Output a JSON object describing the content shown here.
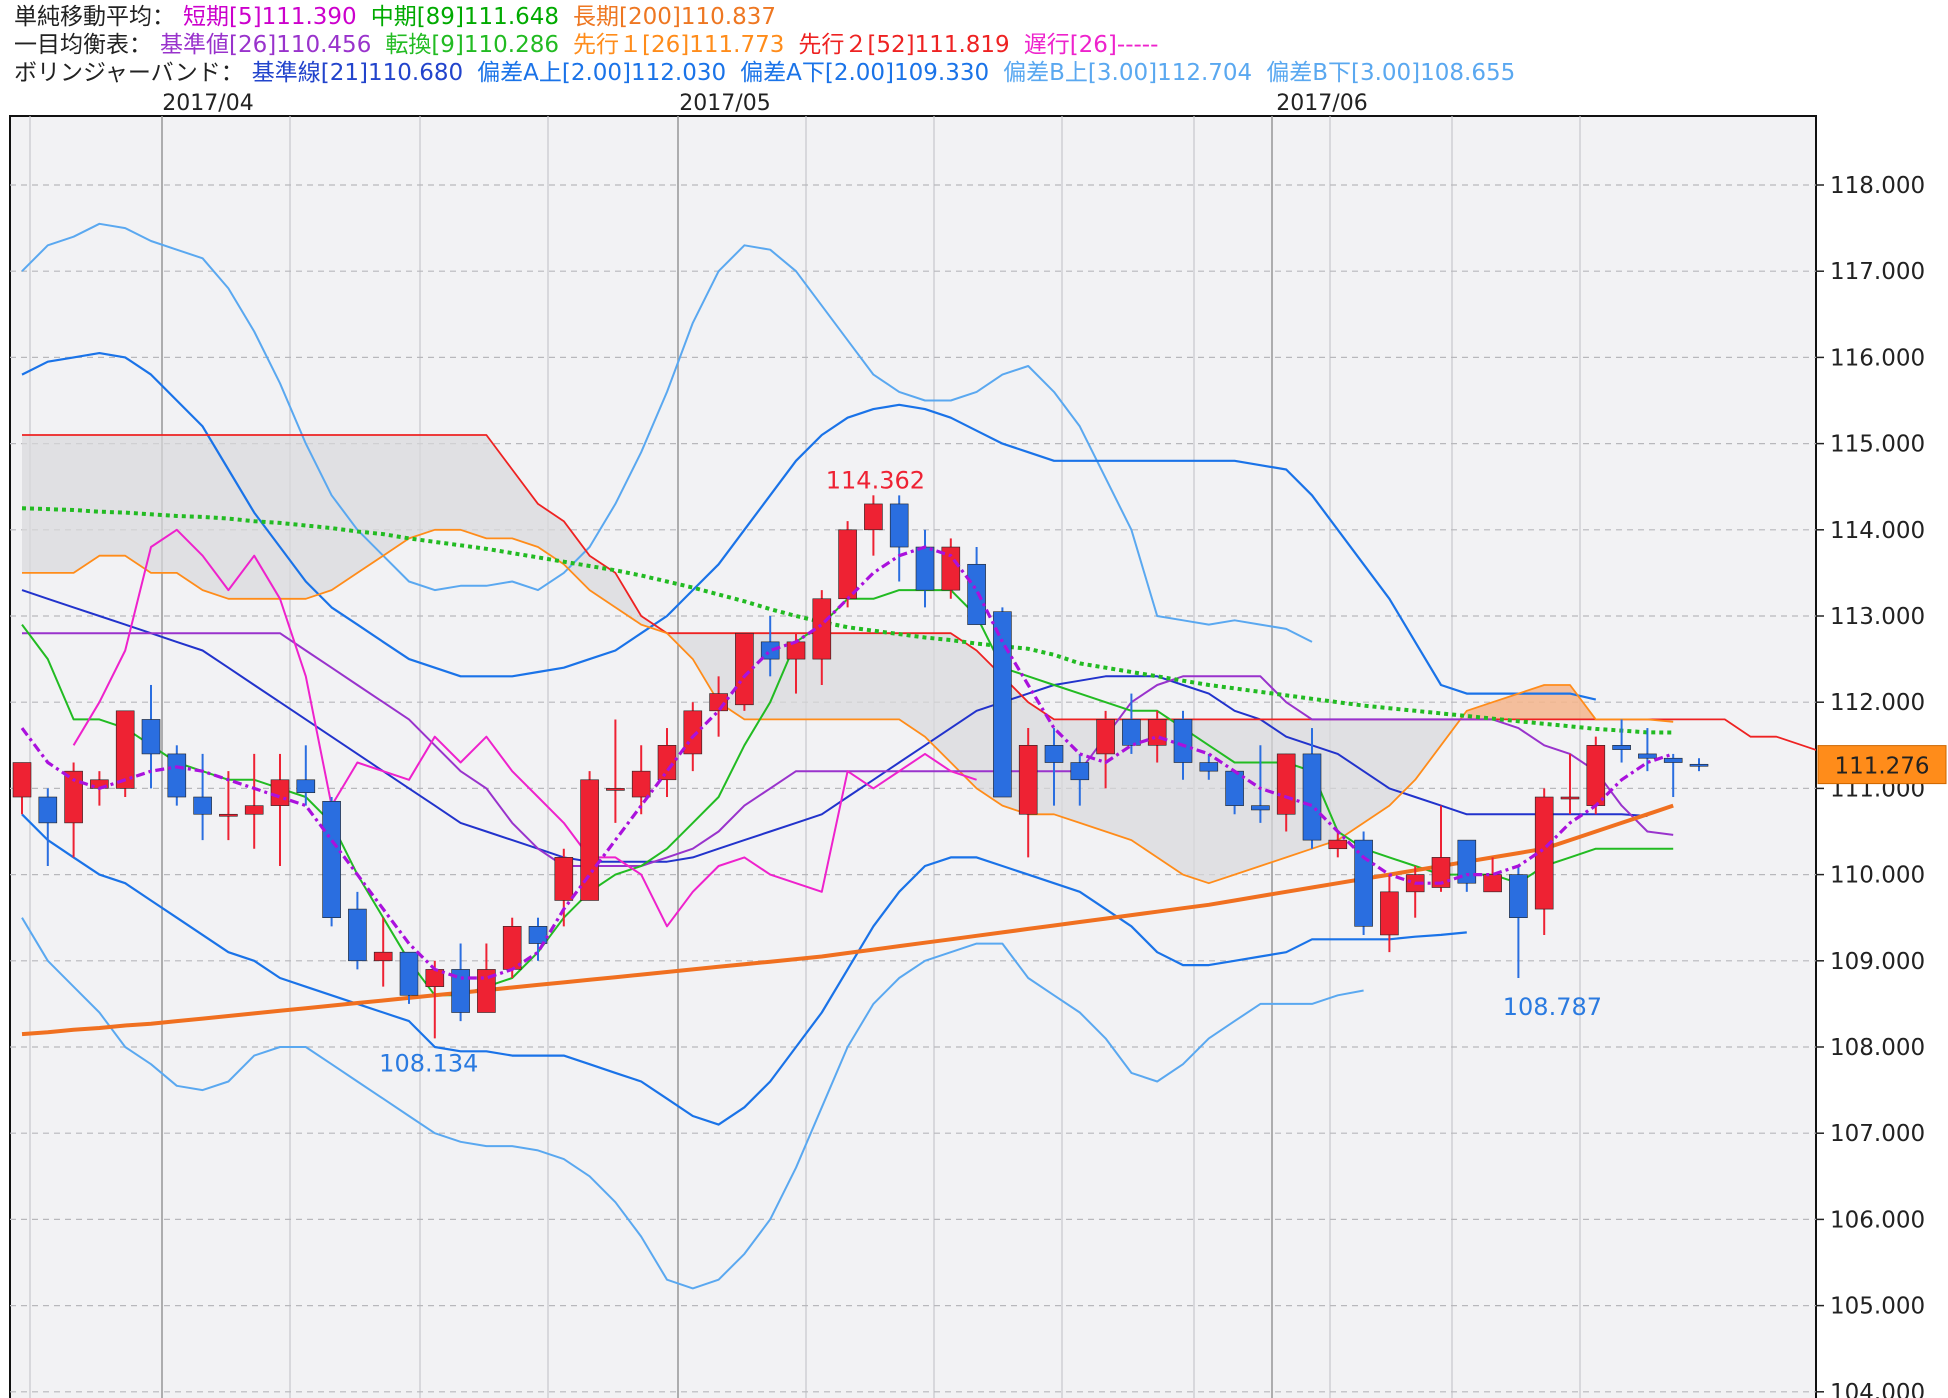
{
  "legend": {
    "sma": {
      "label": "単純移動平均：",
      "short": "短期[5]111.390",
      "mid": "中期[89]111.648",
      "long": "長期[200]110.837",
      "short_color": "#cc00cc",
      "mid_color": "#00aa00",
      "long_color": "#ee7722"
    },
    "ichimoku": {
      "label": "一目均衡表：",
      "base": "基準値[26]110.456",
      "conversion": "転換[9]110.286",
      "span1": "先行１[26]111.773",
      "span2": "先行２[52]111.819",
      "lagging": "遅行[26]-----",
      "base_color": "#9933cc",
      "conversion_color": "#22bb22",
      "span1_color": "#ff8c1a",
      "span2_color": "#ee2222",
      "lagging_color": "#ee22cc"
    },
    "bollinger": {
      "label": "ボリンジャーバンド：",
      "mid": "基準線[21]110.680",
      "a_up": "偏差A上[2.00]112.030",
      "a_down": "偏差A下[2.00]109.330",
      "b_up": "偏差B上[3.00]112.704",
      "b_down": "偏差B下[3.00]108.655",
      "mid_color": "#2244cc",
      "a_color": "#1a73e8",
      "b_color": "#5aa8f0"
    }
  },
  "chart_data": {
    "type": "candlestick",
    "x_labels": [
      "2017/04",
      "2017/05",
      "2017/06"
    ],
    "y_ticks": [
      "118.000",
      "117.000",
      "116.000",
      "115.000",
      "114.000",
      "113.000",
      "112.000",
      "111.000",
      "110.000",
      "109.000",
      "108.000",
      "107.000",
      "106.000",
      "105.000",
      "104.000"
    ],
    "ylim": [
      103.9,
      119.0
    ],
    "current_price": "111.276",
    "high_annotation": "114.362",
    "low_annotation_1": "108.134",
    "low_annotation_2": "108.787",
    "colors": {
      "up": "#ee2233",
      "down": "#2a6ee0",
      "plot_bg": "#f2f2f4",
      "cloud_gray": "#d8d8db",
      "cloud_orange": "#f5b58c",
      "price_tag": "#ff8c1a"
    },
    "candles": [
      {
        "o": 110.9,
        "h": 111.3,
        "l": 110.7,
        "c": 111.3
      },
      {
        "o": 110.9,
        "h": 111.0,
        "l": 110.1,
        "c": 110.6
      },
      {
        "o": 110.6,
        "h": 111.3,
        "l": 110.2,
        "c": 111.2
      },
      {
        "o": 111.0,
        "h": 111.2,
        "l": 110.8,
        "c": 111.1
      },
      {
        "o": 111.0,
        "h": 111.9,
        "l": 110.9,
        "c": 111.9
      },
      {
        "o": 111.8,
        "h": 112.2,
        "l": 111.0,
        "c": 111.4
      },
      {
        "o": 111.4,
        "h": 111.5,
        "l": 110.8,
        "c": 110.9
      },
      {
        "o": 110.9,
        "h": 111.4,
        "l": 110.4,
        "c": 110.7
      },
      {
        "o": 110.7,
        "h": 111.2,
        "l": 110.4,
        "c": 110.7
      },
      {
        "o": 110.7,
        "h": 111.4,
        "l": 110.3,
        "c": 110.8
      },
      {
        "o": 110.8,
        "h": 111.4,
        "l": 110.1,
        "c": 111.1
      },
      {
        "o": 111.1,
        "h": 111.5,
        "l": 110.8,
        "c": 110.95
      },
      {
        "o": 110.85,
        "h": 110.9,
        "l": 109.4,
        "c": 109.5
      },
      {
        "o": 109.6,
        "h": 109.8,
        "l": 108.9,
        "c": 109.0
      },
      {
        "o": 109.0,
        "h": 109.5,
        "l": 108.7,
        "c": 109.1
      },
      {
        "o": 109.1,
        "h": 109.1,
        "l": 108.5,
        "c": 108.6
      },
      {
        "o": 108.7,
        "h": 109.0,
        "l": 108.1,
        "c": 108.9
      },
      {
        "o": 108.9,
        "h": 109.2,
        "l": 108.3,
        "c": 108.4
      },
      {
        "o": 108.4,
        "h": 109.2,
        "l": 108.4,
        "c": 108.9
      },
      {
        "o": 108.9,
        "h": 109.5,
        "l": 108.8,
        "c": 109.4
      },
      {
        "o": 109.4,
        "h": 109.5,
        "l": 109.0,
        "c": 109.2
      },
      {
        "o": 109.7,
        "h": 110.3,
        "l": 109.4,
        "c": 110.2
      },
      {
        "o": 109.7,
        "h": 111.2,
        "l": 109.7,
        "c": 111.1
      },
      {
        "o": 111.0,
        "h": 111.8,
        "l": 110.6,
        "c": 111.0
      },
      {
        "o": 110.9,
        "h": 111.5,
        "l": 110.7,
        "c": 111.2
      },
      {
        "o": 111.1,
        "h": 111.7,
        "l": 110.9,
        "c": 111.5
      },
      {
        "o": 111.4,
        "h": 112.0,
        "l": 111.2,
        "c": 111.9
      },
      {
        "o": 111.9,
        "h": 112.3,
        "l": 111.6,
        "c": 112.1
      },
      {
        "o": 111.97,
        "h": 112.8,
        "l": 111.9,
        "c": 112.8
      },
      {
        "o": 112.7,
        "h": 113.0,
        "l": 112.3,
        "c": 112.5
      },
      {
        "o": 112.5,
        "h": 112.8,
        "l": 112.1,
        "c": 112.7
      },
      {
        "o": 112.5,
        "h": 113.3,
        "l": 112.2,
        "c": 113.2
      },
      {
        "o": 113.2,
        "h": 114.1,
        "l": 113.1,
        "c": 114.0
      },
      {
        "o": 114.0,
        "h": 114.4,
        "l": 113.7,
        "c": 114.3
      },
      {
        "o": 114.3,
        "h": 114.4,
        "l": 113.4,
        "c": 113.8
      },
      {
        "o": 113.8,
        "h": 114.0,
        "l": 113.1,
        "c": 113.3
      },
      {
        "o": 113.3,
        "h": 113.9,
        "l": 113.2,
        "c": 113.8
      },
      {
        "o": 113.6,
        "h": 113.8,
        "l": 112.9,
        "c": 112.9
      },
      {
        "o": 113.05,
        "h": 113.1,
        "l": 110.9,
        "c": 110.9
      },
      {
        "o": 110.7,
        "h": 111.7,
        "l": 110.2,
        "c": 111.5
      },
      {
        "o": 111.5,
        "h": 111.7,
        "l": 110.8,
        "c": 111.3
      },
      {
        "o": 111.3,
        "h": 111.4,
        "l": 110.8,
        "c": 111.1
      },
      {
        "o": 111.4,
        "h": 111.9,
        "l": 111.0,
        "c": 111.8
      },
      {
        "o": 111.8,
        "h": 112.1,
        "l": 111.4,
        "c": 111.5
      },
      {
        "o": 111.5,
        "h": 111.9,
        "l": 111.3,
        "c": 111.8
      },
      {
        "o": 111.8,
        "h": 111.9,
        "l": 111.1,
        "c": 111.3
      },
      {
        "o": 111.3,
        "h": 111.4,
        "l": 111.1,
        "c": 111.2
      },
      {
        "o": 111.2,
        "h": 111.2,
        "l": 110.7,
        "c": 110.8
      },
      {
        "o": 110.8,
        "h": 111.5,
        "l": 110.6,
        "c": 110.75
      },
      {
        "o": 110.7,
        "h": 111.4,
        "l": 110.5,
        "c": 111.4
      },
      {
        "o": 111.4,
        "h": 111.7,
        "l": 110.3,
        "c": 110.4
      },
      {
        "o": 110.3,
        "h": 110.5,
        "l": 110.2,
        "c": 110.4
      },
      {
        "o": 110.4,
        "h": 110.5,
        "l": 109.3,
        "c": 109.4
      },
      {
        "o": 109.3,
        "h": 110.0,
        "l": 109.1,
        "c": 109.8
      },
      {
        "o": 109.8,
        "h": 110.1,
        "l": 109.5,
        "c": 110.0
      },
      {
        "o": 109.85,
        "h": 110.8,
        "l": 109.8,
        "c": 110.2
      },
      {
        "o": 110.4,
        "h": 110.4,
        "l": 109.8,
        "c": 109.9
      },
      {
        "o": 109.8,
        "h": 110.2,
        "l": 109.8,
        "c": 110.0
      },
      {
        "o": 110.0,
        "h": 110.1,
        "l": 108.8,
        "c": 109.5
      },
      {
        "o": 109.6,
        "h": 111.0,
        "l": 109.3,
        "c": 110.9
      },
      {
        "o": 110.9,
        "h": 111.4,
        "l": 110.7,
        "c": 110.9
      },
      {
        "o": 110.8,
        "h": 111.6,
        "l": 110.7,
        "c": 111.5
      },
      {
        "o": 111.5,
        "h": 111.8,
        "l": 111.3,
        "c": 111.45
      },
      {
        "o": 111.4,
        "h": 111.7,
        "l": 111.2,
        "c": 111.35
      },
      {
        "o": 111.35,
        "h": 111.4,
        "l": 110.9,
        "c": 111.3
      },
      {
        "o": 111.28,
        "h": 111.35,
        "l": 111.2,
        "c": 111.276
      }
    ],
    "sma5": [
      111.7,
      111.3,
      111.1,
      111.0,
      111.1,
      111.2,
      111.25,
      111.2,
      111.1,
      111.0,
      110.9,
      110.8,
      110.4,
      110.0,
      109.6,
      109.2,
      108.9,
      108.8,
      108.8,
      108.9,
      109.1,
      109.6,
      110.0,
      110.4,
      110.8,
      111.2,
      111.6,
      111.9,
      112.3,
      112.6,
      112.7,
      112.9,
      113.2,
      113.5,
      113.7,
      113.8,
      113.7,
      113.3,
      112.7,
      112.2,
      111.7,
      111.4,
      111.3,
      111.5,
      111.6,
      111.5,
      111.4,
      111.2,
      111.0,
      110.9,
      110.8,
      110.5,
      110.2,
      110.0,
      109.9,
      109.9,
      110.0,
      110.0,
      110.1,
      110.3,
      110.6,
      110.8,
      111.1,
      111.3,
      111.4
    ],
    "sma89": [
      114.25,
      114.24,
      114.23,
      114.21,
      114.2,
      114.18,
      114.16,
      114.15,
      114.13,
      114.1,
      114.08,
      114.05,
      114.02,
      113.98,
      113.95,
      113.9,
      113.86,
      113.82,
      113.78,
      113.73,
      113.68,
      113.63,
      113.58,
      113.53,
      113.47,
      113.4,
      113.33,
      113.25,
      113.17,
      113.08,
      113.0,
      112.93,
      112.87,
      112.83,
      112.79,
      112.75,
      112.72,
      112.68,
      112.65,
      112.62,
      112.55,
      112.45,
      112.4,
      112.35,
      112.3,
      112.25,
      112.2,
      112.16,
      112.12,
      112.08,
      112.04,
      112.0,
      111.96,
      111.93,
      111.9,
      111.87,
      111.84,
      111.81,
      111.78,
      111.75,
      111.72,
      111.69,
      111.67,
      111.65,
      111.648
    ],
    "sma200": [
      108.15,
      108.17,
      108.2,
      108.22,
      108.25,
      108.27,
      108.3,
      108.33,
      108.36,
      108.39,
      108.42,
      108.45,
      108.48,
      108.51,
      108.54,
      108.57,
      108.6,
      108.63,
      108.66,
      108.69,
      108.72,
      108.75,
      108.78,
      108.81,
      108.84,
      108.87,
      108.9,
      108.93,
      108.96,
      108.99,
      109.02,
      109.05,
      109.09,
      109.13,
      109.17,
      109.21,
      109.25,
      109.29,
      109.33,
      109.37,
      109.41,
      109.45,
      109.49,
      109.53,
      109.57,
      109.61,
      109.65,
      109.7,
      109.75,
      109.8,
      109.85,
      109.9,
      109.95,
      110.0,
      110.05,
      110.1,
      110.15,
      110.2,
      110.25,
      110.3,
      110.4,
      110.5,
      110.6,
      110.7,
      110.8
    ],
    "tenkan": [
      112.9,
      112.5,
      111.8,
      111.8,
      111.7,
      111.5,
      111.3,
      111.2,
      111.1,
      111.1,
      111.0,
      110.9,
      110.6,
      110.0,
      109.5,
      109.0,
      108.6,
      108.6,
      108.7,
      108.8,
      109.1,
      109.5,
      109.8,
      110.0,
      110.1,
      110.3,
      110.6,
      110.9,
      111.5,
      112.0,
      112.7,
      112.9,
      113.2,
      113.2,
      113.3,
      113.3,
      113.3,
      113.0,
      112.4,
      112.3,
      112.2,
      112.1,
      112.0,
      111.9,
      111.9,
      111.7,
      111.5,
      111.3,
      111.3,
      111.3,
      111.2,
      110.5,
      110.3,
      110.2,
      110.1,
      110.0,
      110.0,
      110.0,
      109.9,
      110.1,
      110.2,
      110.3,
      110.3,
      110.3,
      110.3
    ],
    "kijun": [
      112.8,
      112.8,
      112.8,
      112.8,
      112.8,
      112.8,
      112.8,
      112.8,
      112.8,
      112.8,
      112.8,
      112.6,
      112.4,
      112.2,
      112.0,
      111.8,
      111.5,
      111.2,
      111.0,
      110.6,
      110.3,
      110.1,
      110.1,
      110.1,
      110.1,
      110.2,
      110.3,
      110.5,
      110.8,
      111.0,
      111.2,
      111.2,
      111.2,
      111.2,
      111.2,
      111.2,
      111.2,
      111.2,
      111.2,
      111.2,
      111.2,
      111.2,
      111.6,
      112.0,
      112.2,
      112.3,
      112.3,
      112.3,
      112.3,
      112.0,
      111.8,
      111.8,
      111.8,
      111.8,
      111.8,
      111.8,
      111.8,
      111.8,
      111.7,
      111.5,
      111.4,
      111.2,
      110.8,
      110.5,
      110.46
    ],
    "lagging": [
      null,
      null,
      111.5,
      112.0,
      112.6,
      113.8,
      114.0,
      113.7,
      113.3,
      113.7,
      113.2,
      112.3,
      110.8,
      111.3,
      111.2,
      111.1,
      111.6,
      111.3,
      111.6,
      111.2,
      110.9,
      110.6,
      110.2,
      110.2,
      110.0,
      109.4,
      109.8,
      110.1,
      110.2,
      110.0,
      109.9,
      109.8,
      111.2,
      111.0,
      111.2,
      111.4,
      111.2,
      111.1,
      null,
      null,
      null,
      null,
      null,
      null,
      null,
      null,
      null,
      null,
      null,
      null,
      null,
      null,
      null,
      null,
      null,
      null,
      null,
      null,
      null,
      null,
      null,
      null,
      null,
      null,
      null
    ],
    "span1": [
      113.5,
      113.5,
      113.5,
      113.7,
      113.7,
      113.5,
      113.5,
      113.3,
      113.2,
      113.2,
      113.2,
      113.2,
      113.3,
      113.5,
      113.7,
      113.9,
      114.0,
      114.0,
      113.9,
      113.9,
      113.8,
      113.6,
      113.3,
      113.1,
      112.9,
      112.8,
      112.5,
      112.0,
      111.8,
      111.8,
      111.8,
      111.8,
      111.8,
      111.8,
      111.8,
      111.6,
      111.3,
      111.0,
      110.8,
      110.7,
      110.7,
      110.6,
      110.5,
      110.4,
      110.2,
      110.0,
      109.9,
      110.0,
      110.1,
      110.2,
      110.3,
      110.4,
      110.6,
      110.8,
      111.1,
      111.5,
      111.9,
      112.0,
      112.1,
      112.2,
      112.2,
      111.8,
      111.8,
      111.8,
      111.773
    ],
    "span2": [
      115.1,
      115.1,
      115.1,
      115.1,
      115.1,
      115.1,
      115.1,
      115.1,
      115.1,
      115.1,
      115.1,
      115.1,
      115.1,
      115.1,
      115.1,
      115.1,
      115.1,
      115.1,
      115.1,
      114.7,
      114.3,
      114.1,
      113.7,
      113.5,
      113.0,
      112.8,
      112.8,
      112.8,
      112.8,
      112.8,
      112.8,
      112.8,
      112.8,
      112.8,
      112.8,
      112.8,
      112.8,
      112.6,
      112.3,
      112.0,
      111.8,
      111.8,
      111.8,
      111.8,
      111.8,
      111.8,
      111.8,
      111.8,
      111.8,
      111.8,
      111.8,
      111.8,
      111.8,
      111.8,
      111.8,
      111.8,
      111.8,
      111.8,
      111.8,
      111.8,
      111.8,
      111.8,
      111.8,
      111.8,
      111.8,
      111.8,
      111.8,
      111.6,
      111.6,
      111.5,
      111.4
    ],
    "bb_mid": [
      113.3,
      113.2,
      113.1,
      113.0,
      112.9,
      112.8,
      112.7,
      112.6,
      112.4,
      112.2,
      112.0,
      111.8,
      111.6,
      111.4,
      111.2,
      111.0,
      110.8,
      110.6,
      110.5,
      110.4,
      110.3,
      110.2,
      110.15,
      110.15,
      110.15,
      110.15,
      110.2,
      110.3,
      110.4,
      110.5,
      110.6,
      110.7,
      110.9,
      111.1,
      111.3,
      111.5,
      111.7,
      111.9,
      112.0,
      112.1,
      112.2,
      112.25,
      112.3,
      112.3,
      112.3,
      112.2,
      112.1,
      111.9,
      111.8,
      111.6,
      111.5,
      111.4,
      111.2,
      111.0,
      110.9,
      110.8,
      110.7,
      110.7,
      110.7,
      110.7,
      110.7,
      110.7,
      110.7,
      110.68
    ],
    "bb_a_up": [
      115.8,
      115.95,
      116.0,
      116.05,
      116.0,
      115.8,
      115.5,
      115.2,
      114.7,
      114.2,
      113.8,
      113.4,
      113.1,
      112.9,
      112.7,
      112.5,
      112.4,
      112.3,
      112.3,
      112.3,
      112.35,
      112.4,
      112.5,
      112.6,
      112.8,
      113.0,
      113.3,
      113.6,
      114.0,
      114.4,
      114.8,
      115.1,
      115.3,
      115.4,
      115.45,
      115.4,
      115.3,
      115.15,
      115.0,
      114.9,
      114.8,
      114.8,
      114.8,
      114.8,
      114.8,
      114.8,
      114.8,
      114.8,
      114.75,
      114.7,
      114.4,
      114.0,
      113.6,
      113.2,
      112.7,
      112.2,
      112.1,
      112.1,
      112.1,
      112.1,
      112.1,
      112.03
    ],
    "bb_a_down": [
      110.7,
      110.4,
      110.2,
      110.0,
      109.9,
      109.7,
      109.5,
      109.3,
      109.1,
      109.0,
      108.8,
      108.7,
      108.6,
      108.5,
      108.4,
      108.3,
      108.0,
      107.95,
      107.95,
      107.9,
      107.9,
      107.9,
      107.8,
      107.7,
      107.6,
      107.4,
      107.2,
      107.1,
      107.3,
      107.6,
      108.0,
      108.4,
      108.9,
      109.4,
      109.8,
      110.1,
      110.2,
      110.2,
      110.1,
      110.0,
      109.9,
      109.8,
      109.6,
      109.4,
      109.1,
      108.95,
      108.95,
      109.0,
      109.05,
      109.1,
      109.25,
      109.25,
      109.25,
      109.25,
      109.28,
      109.3,
      109.33
    ],
    "bb_b_up": [
      117.0,
      117.3,
      117.4,
      117.55,
      117.5,
      117.35,
      117.25,
      117.15,
      116.8,
      116.3,
      115.7,
      115.0,
      114.4,
      114.0,
      113.7,
      113.4,
      113.3,
      113.35,
      113.35,
      113.4,
      113.3,
      113.5,
      113.8,
      114.3,
      114.9,
      115.6,
      116.4,
      117.0,
      117.3,
      117.25,
      117.0,
      116.6,
      116.2,
      115.8,
      115.6,
      115.5,
      115.5,
      115.6,
      115.8,
      115.9,
      115.6,
      115.2,
      114.6,
      114.0,
      113.0,
      112.95,
      112.9,
      112.95,
      112.9,
      112.85,
      112.7
    ],
    "bb_b_down": [
      109.5,
      109.0,
      108.7,
      108.4,
      108.0,
      107.8,
      107.55,
      107.5,
      107.6,
      107.9,
      108.0,
      108.0,
      107.8,
      107.6,
      107.4,
      107.2,
      107.0,
      106.9,
      106.85,
      106.85,
      106.8,
      106.7,
      106.5,
      106.2,
      105.8,
      105.3,
      105.2,
      105.3,
      105.6,
      106.0,
      106.6,
      107.3,
      108.0,
      108.5,
      108.8,
      109.0,
      109.1,
      109.2,
      109.2,
      108.8,
      108.6,
      108.4,
      108.1,
      107.7,
      107.6,
      107.8,
      108.1,
      108.3,
      108.5,
      108.5,
      108.5,
      108.6,
      108.655
    ]
  }
}
